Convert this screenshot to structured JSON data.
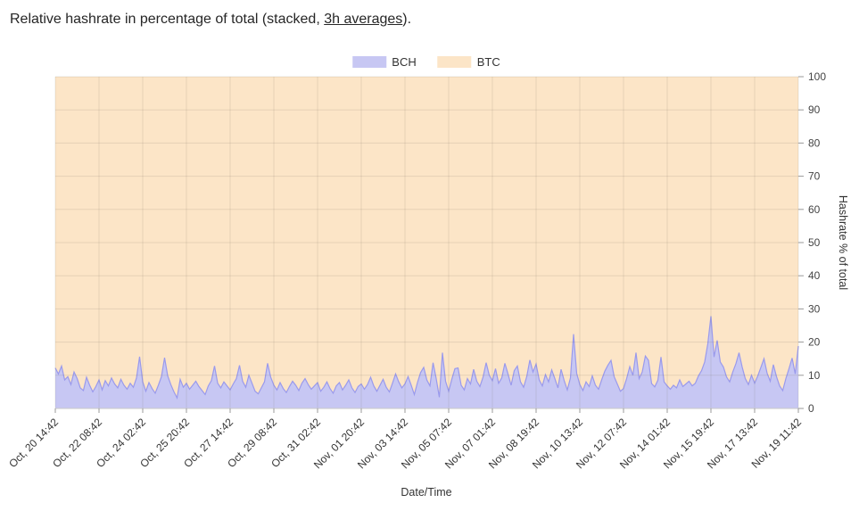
{
  "title": {
    "prefix": "Relative hashrate in percentage of total (stacked, ",
    "link_text": "3h averages",
    "suffix": ")."
  },
  "legend": {
    "position": "top-center",
    "items": [
      {
        "label": "BCH",
        "color": "#c7c7f3"
      },
      {
        "label": "BTC",
        "color": "#fce5c7"
      }
    ]
  },
  "chart_data": {
    "type": "area",
    "stacked": true,
    "stack_total": 100,
    "xlabel": "Date/Time",
    "ylabel": "Hashrate % of total",
    "y_axis_side": "right",
    "ylim": [
      0,
      100
    ],
    "y_ticks": [
      0,
      10,
      20,
      30,
      40,
      50,
      60,
      70,
      80,
      90,
      100
    ],
    "grid": true,
    "x_tick_labels": [
      "Oct, 20 14:42",
      "Oct, 22 08:42",
      "Oct, 24 02:42",
      "Oct, 25 20:42",
      "Oct, 27 14:42",
      "Oct, 29 08:42",
      "Oct, 31 02:42",
      "Nov, 01 20:42",
      "Nov, 03 14:42",
      "Nov, 05 07:42",
      "Nov, 07 01:42",
      "Nov, 08 19:42",
      "Nov, 10 13:42",
      "Nov, 12 07:42",
      "Nov, 14 01:42",
      "Nov, 15 19:42",
      "Nov, 17 13:42",
      "Nov, 19 11:42"
    ],
    "points_per_tick_interval": 14,
    "series": [
      {
        "name": "BCH",
        "fill": "#c7c7f3",
        "line": "#9a9aec",
        "values": [
          12.2,
          10.4,
          12.8,
          8.6,
          9.6,
          7.2,
          11,
          9,
          6.2,
          5.4,
          9.4,
          7,
          5,
          6.6,
          8.6,
          5.6,
          8.4,
          6.8,
          9.2,
          7.4,
          6.2,
          8.8,
          7,
          5.8,
          7.6,
          6.4,
          9.2,
          15.6,
          8,
          5.2,
          7.8,
          6,
          4.6,
          7,
          9.6,
          15.3,
          9.8,
          7.2,
          5,
          3.2,
          8.8,
          6.4,
          7.6,
          5.8,
          7,
          8.2,
          6.6,
          5.4,
          4.2,
          6.8,
          8.4,
          12.8,
          7.6,
          6.2,
          8,
          6.8,
          5.6,
          7.4,
          9,
          13,
          8.2,
          6.4,
          10,
          7.6,
          5.2,
          4.4,
          6.2,
          8,
          13.6,
          9.4,
          7,
          5.6,
          7.8,
          6,
          4.8,
          6.6,
          8.2,
          7,
          5.4,
          7.6,
          9,
          7.2,
          5.8,
          6.8,
          7.8,
          5.2,
          6.4,
          8,
          6,
          4.6,
          6.8,
          7.8,
          5.6,
          7,
          8.6,
          6.2,
          4.8,
          6.6,
          7.4,
          5.8,
          7.2,
          9.4,
          6.8,
          5.2,
          7,
          8.8,
          6.4,
          5,
          7.6,
          10.4,
          8,
          6.2,
          7.4,
          9.6,
          7,
          4.2,
          7.8,
          10.8,
          12.4,
          8.6,
          6.8,
          13.8,
          9,
          3.4,
          16.8,
          8.2,
          5.2,
          8.8,
          12,
          12.2,
          7,
          5.6,
          9,
          7.4,
          11.8,
          8.2,
          6.6,
          9.4,
          13.8,
          10,
          8.4,
          12,
          7.6,
          9.2,
          13.6,
          10.4,
          7,
          11.4,
          12.8,
          8,
          6.4,
          9.6,
          14.6,
          11,
          13.4,
          8.6,
          6.8,
          10.2,
          8,
          11.6,
          9,
          6.2,
          11.8,
          8.4,
          5.6,
          9.2,
          22.4,
          10.6,
          7.2,
          5.4,
          8,
          6.6,
          9.8,
          7,
          5.8,
          8.6,
          11.2,
          13,
          14.5,
          9.6,
          7.4,
          5.2,
          6,
          9,
          12.6,
          10,
          16.8,
          9,
          11,
          15.8,
          14.5,
          7.5,
          6.5,
          8.5,
          15.5,
          8,
          6.8,
          5.8,
          7,
          6.2,
          8.6,
          6.6,
          7.4,
          8.2,
          6.8,
          7.6,
          9.8,
          11.4,
          14,
          19.5,
          27.8,
          15.5,
          20.5,
          14,
          12.5,
          9.5,
          8,
          11,
          13.5,
          16.8,
          12.5,
          9,
          7.2,
          10,
          7.6,
          9.8,
          12.4,
          15,
          10.6,
          8.2,
          13.2,
          9.6,
          6.8,
          5.4,
          9,
          12,
          15.2,
          10.4,
          18.8
        ]
      },
      {
        "name": "BTC",
        "fill": "#fce5c7",
        "line": "#f6d2a2",
        "values_rule": "100 minus BCH (stacked complement to 100%)"
      }
    ]
  }
}
